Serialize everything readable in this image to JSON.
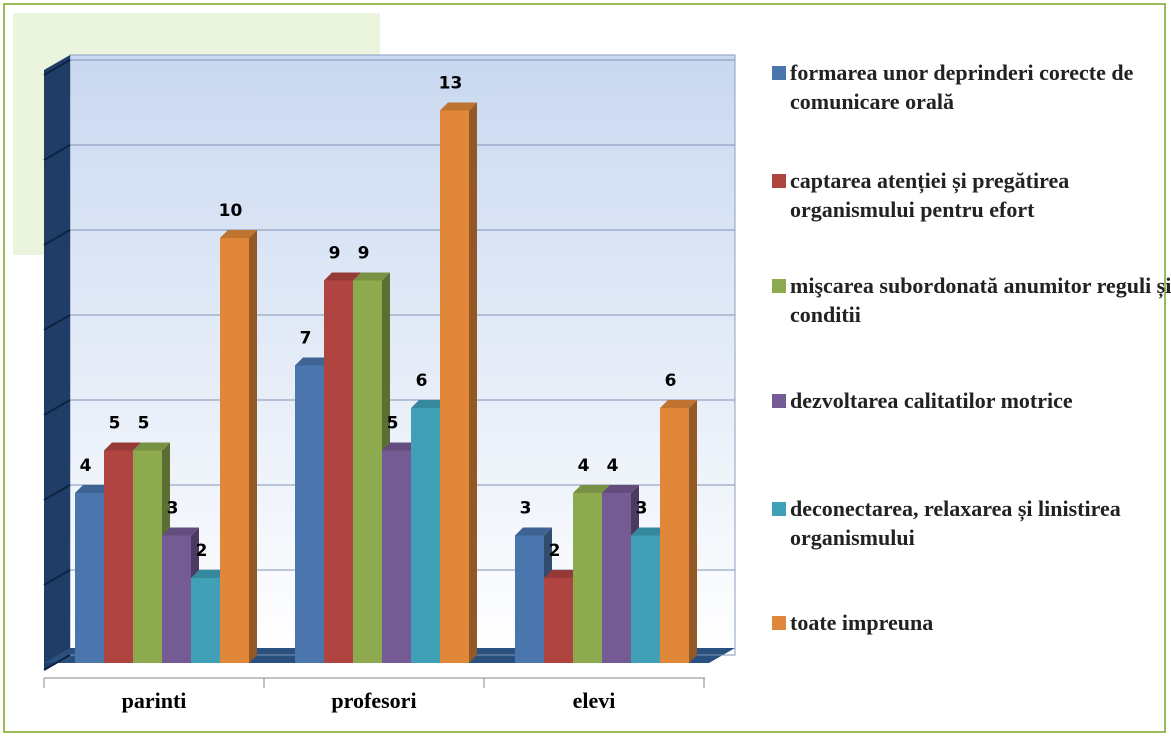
{
  "chart_data": {
    "type": "bar3d",
    "categories": [
      "parinti",
      "profesori",
      "elevi"
    ],
    "series": [
      {
        "name": "formarea unor deprinderi corecte de comunicare orală",
        "color": "#4a76ad",
        "values": [
          4,
          7,
          3
        ]
      },
      {
        "name": "captarea atenției și pregătirea organismului pentru efort",
        "color": "#b04441",
        "values": [
          5,
          9,
          2
        ]
      },
      {
        "name": "mişcarea subordonată anumitor reguli și conditii",
        "color": "#8eaa4e",
        "values": [
          5,
          9,
          4
        ]
      },
      {
        "name": "dezvoltarea calitatilor motrice",
        "color": "#745b94",
        "values": [
          3,
          5,
          4
        ]
      },
      {
        "name": "deconectarea, relaxarea și linistirea organismului",
        "color": "#3fa0b7",
        "values": [
          2,
          6,
          3
        ]
      },
      {
        "name": "toate impreuna",
        "color": "#e08739",
        "values": [
          10,
          13,
          6
        ]
      }
    ],
    "ylim": [
      0,
      14
    ],
    "yticks": [
      0,
      2,
      4,
      6,
      8,
      10,
      12,
      14
    ],
    "grid": true,
    "legend": "right"
  }
}
